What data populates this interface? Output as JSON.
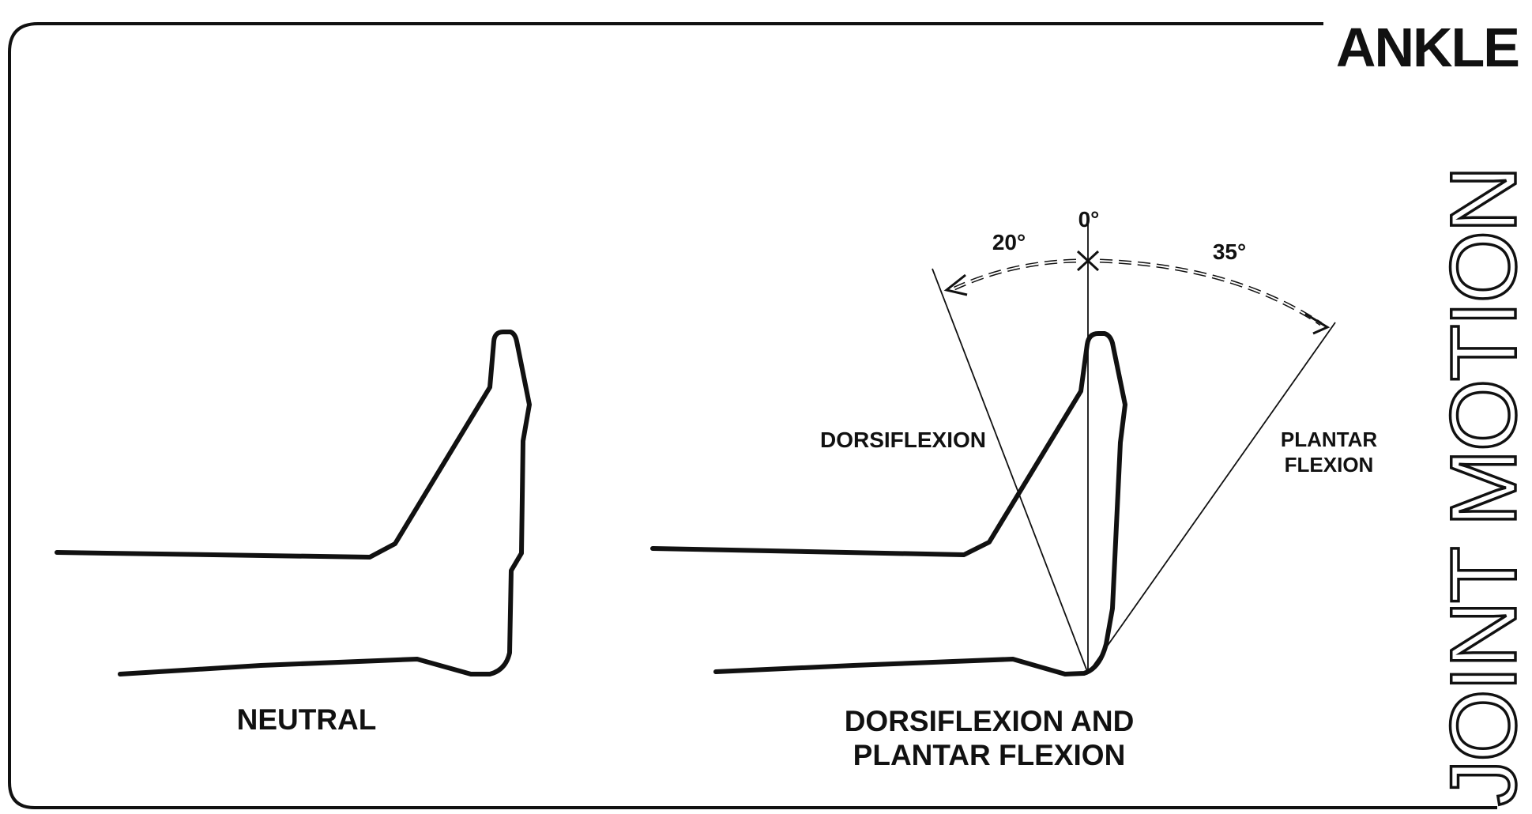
{
  "header": {
    "title": "ANKLE",
    "side_title": "JOINT MOTION"
  },
  "panels": {
    "neutral": {
      "label": "NEUTRAL"
    },
    "motion": {
      "label_line1": "DORSIFLEXION AND",
      "label_line2": "PLANTAR FLEXION"
    }
  },
  "angles": {
    "zero_label": "0°",
    "dorsiflexion_value": "20°",
    "plantar_value": "35°",
    "dorsiflexion_label": "DORSIFLEXION",
    "plantar_label_line1": "PLANTAR",
    "plantar_label_line2": "FLEXION"
  },
  "colors": {
    "ink": "#111111",
    "background": "#ffffff"
  }
}
